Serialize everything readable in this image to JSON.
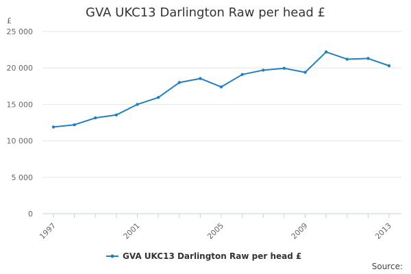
{
  "chart_data": {
    "type": "line",
    "title": "GVA UKC13 Darlington Raw per head £",
    "ylabel": "£",
    "xlabel": "",
    "x": [
      1997,
      1998,
      1999,
      2000,
      2001,
      2002,
      2003,
      2004,
      2005,
      2006,
      2007,
      2008,
      2009,
      2010,
      2011,
      2012,
      2013
    ],
    "series": [
      {
        "name": "GVA UKC13 Darlington Raw per head £",
        "values": [
          11900,
          12200,
          13150,
          13550,
          15000,
          15950,
          18000,
          18550,
          17400,
          19100,
          19700,
          19950,
          19400,
          22200,
          21200,
          21300,
          20300
        ],
        "color": "#1f7fc0"
      }
    ],
    "x_ticks": [
      "1997",
      "2001",
      "2005",
      "2009",
      "2013"
    ],
    "y_ticks": [
      "0",
      "5 000",
      "10 000",
      "15 000",
      "20 000",
      "25 000"
    ],
    "y_tick_values": [
      0,
      5000,
      10000,
      15000,
      20000,
      25000
    ],
    "ylim": [
      0,
      25000
    ],
    "xlim": [
      1997,
      2013
    ],
    "grid": "horizontal",
    "legend_position": "bottom"
  },
  "source_label": "Source:",
  "colors": {
    "series": "#1f7fc0",
    "grid": "#e6e6e6",
    "axis": "#c0d0e0",
    "text": "#333333"
  }
}
